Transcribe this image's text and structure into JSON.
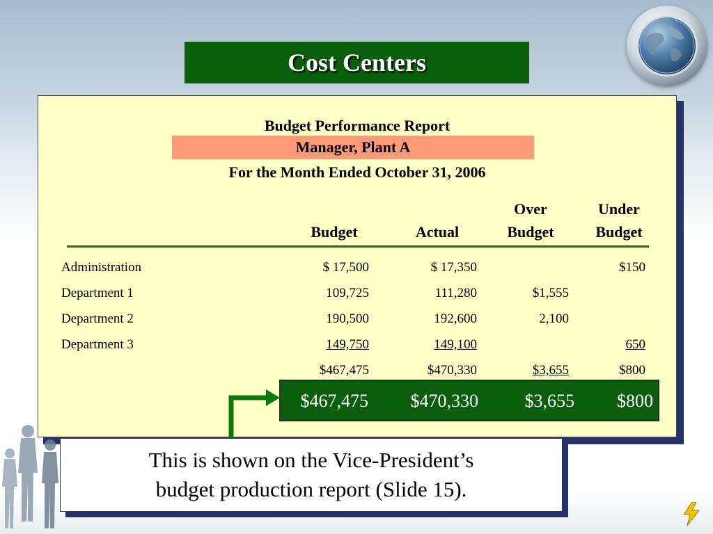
{
  "slide": {
    "title": "Cost Centers"
  },
  "report": {
    "title": "Budget Performance Report",
    "manager": "Manager, Plant A",
    "period": "For the Month Ended October 31, 2006",
    "columns": {
      "budget": "Budget",
      "actual": "Actual",
      "over_line1": "Over",
      "over_line2": "Budget",
      "under_line1": "Under",
      "under_line2": "Budget"
    },
    "rows": [
      {
        "label": "Administration",
        "budget": "$ 17,500",
        "actual": "$ 17,350",
        "over": "",
        "under": "$150"
      },
      {
        "label": "Department 1",
        "budget": "109,725",
        "actual": "111,280",
        "over": "$1,555",
        "under": ""
      },
      {
        "label": "Department 2",
        "budget": "190,500",
        "actual": "192,600",
        "over": "2,100",
        "under": ""
      },
      {
        "label": "Department 3",
        "budget": "149,750",
        "actual": "149,100",
        "over": "",
        "under": "650"
      }
    ],
    "totals": {
      "budget": "$467,475",
      "actual": "$470,330",
      "over": "$3,655",
      "under": "$800"
    }
  },
  "highlight": {
    "budget": "$467,475",
    "actual": "$470,330",
    "over": "$3,655",
    "under": "$800"
  },
  "callout": {
    "line1": "This is shown on the Vice-President’s",
    "line2": "budget production report (Slide 15)."
  },
  "colors": {
    "title_bg": "#0b5e0b",
    "report_bg": "#ffffc8",
    "manager_band": "#ff9a78",
    "shadow": "#26326e",
    "arrow": "#0b7a0b"
  }
}
